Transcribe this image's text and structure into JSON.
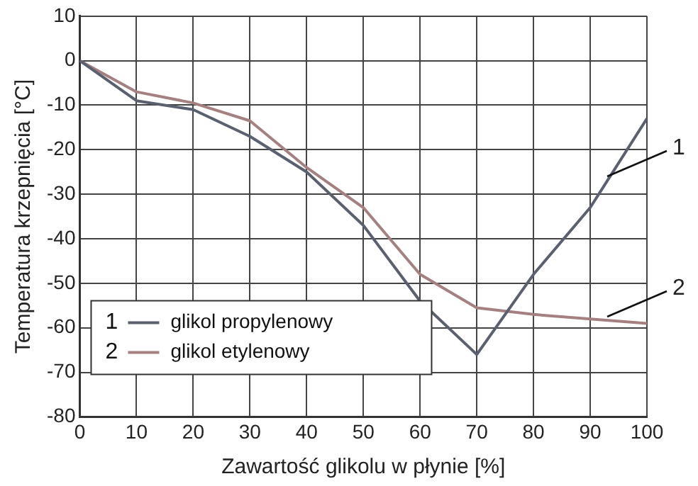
{
  "chart_data": {
    "type": "line",
    "xlabel": "Zawartość glikolu w płynie [%]",
    "ylabel": "Temperatura krzepnięcia [°C]",
    "x": [
      0,
      10,
      20,
      30,
      40,
      50,
      60,
      70,
      80,
      90,
      100
    ],
    "series": [
      {
        "name": "glikol propylenowy",
        "color": "#5a6070",
        "values": [
          0,
          -9,
          -11,
          -17,
          -25,
          -37,
          -54,
          -66,
          -48,
          -33,
          -13
        ]
      },
      {
        "name": "glikol etylenowy",
        "color": "#a58080",
        "values": [
          0,
          -7,
          -9.5,
          -13.5,
          -24,
          -33,
          -48,
          -55.5,
          -57,
          -58,
          -59
        ]
      }
    ],
    "xlim": [
      0,
      100
    ],
    "xticks": [
      0,
      10,
      20,
      30,
      40,
      50,
      60,
      70,
      80,
      90,
      100
    ],
    "ylim": [
      -80,
      10
    ],
    "yticks": [
      -80,
      -70,
      -60,
      -50,
      -40,
      -30,
      -20,
      -10,
      0,
      10
    ],
    "annotations": [
      {
        "text": "1",
        "x": 93,
        "y": -26
      },
      {
        "text": "2",
        "x": 93,
        "y": -57.5
      }
    ],
    "grid": true,
    "legend": "bottom left",
    "marker": "none",
    "line_style": "solid"
  }
}
